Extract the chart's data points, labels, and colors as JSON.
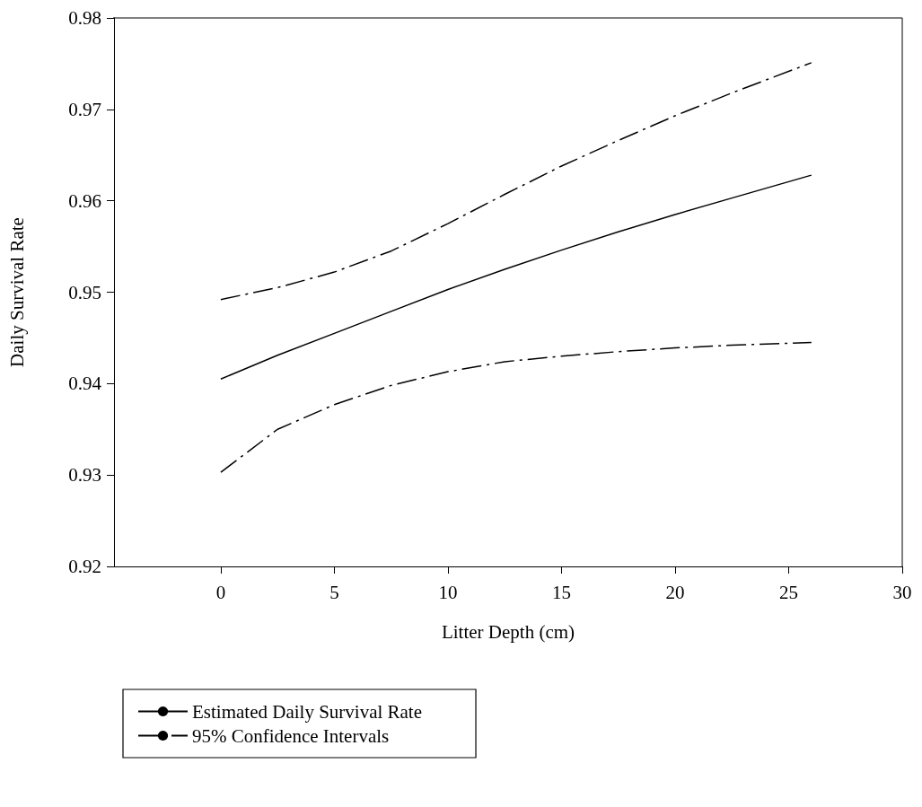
{
  "chart_data": {
    "type": "line",
    "xlabel": "Litter Depth (cm)",
    "ylabel": "Daily Survival Rate",
    "xlim": [
      -4.7,
      30
    ],
    "xticks": [
      0,
      5,
      10,
      15,
      20,
      25,
      30
    ],
    "ylim": [
      0.92,
      0.98
    ],
    "yticks": [
      0.92,
      0.93,
      0.94,
      0.95,
      0.96,
      0.97,
      0.98
    ],
    "grid": false,
    "legend": "bottom left",
    "marker": "none",
    "series": [
      {
        "name": "Estimated Daily Survival Rate",
        "color": "#000000",
        "line_style": "solid",
        "x": [
          0,
          2.5,
          5,
          7.5,
          10,
          12.5,
          15,
          17.5,
          20,
          22.5,
          26
        ],
        "values": [
          0.9405,
          0.9431,
          0.9455,
          0.9479,
          0.9503,
          0.9525,
          0.9546,
          0.9566,
          0.9585,
          0.9603,
          0.9628
        ]
      },
      {
        "name": "95% Confidence Intervals",
        "color": "#000000",
        "line_style": "dashed",
        "x": [
          0,
          2.5,
          5,
          7.5,
          10,
          12.5,
          15,
          17.5,
          20,
          22.5,
          26
        ],
        "values": [
          0.9492,
          0.9505,
          0.9522,
          0.9545,
          0.9575,
          0.9607,
          0.9638,
          0.9666,
          0.9693,
          0.9718,
          0.9751
        ]
      },
      {
        "color": "#000000",
        "line_style": "dashed",
        "x": [
          0,
          2.5,
          5,
          7.5,
          10,
          12.5,
          15,
          17.5,
          20,
          22.5,
          26
        ],
        "values": [
          0.9303,
          0.935,
          0.9377,
          0.9398,
          0.9413,
          0.9424,
          0.943,
          0.9435,
          0.9439,
          0.9442,
          0.9445
        ]
      }
    ]
  }
}
